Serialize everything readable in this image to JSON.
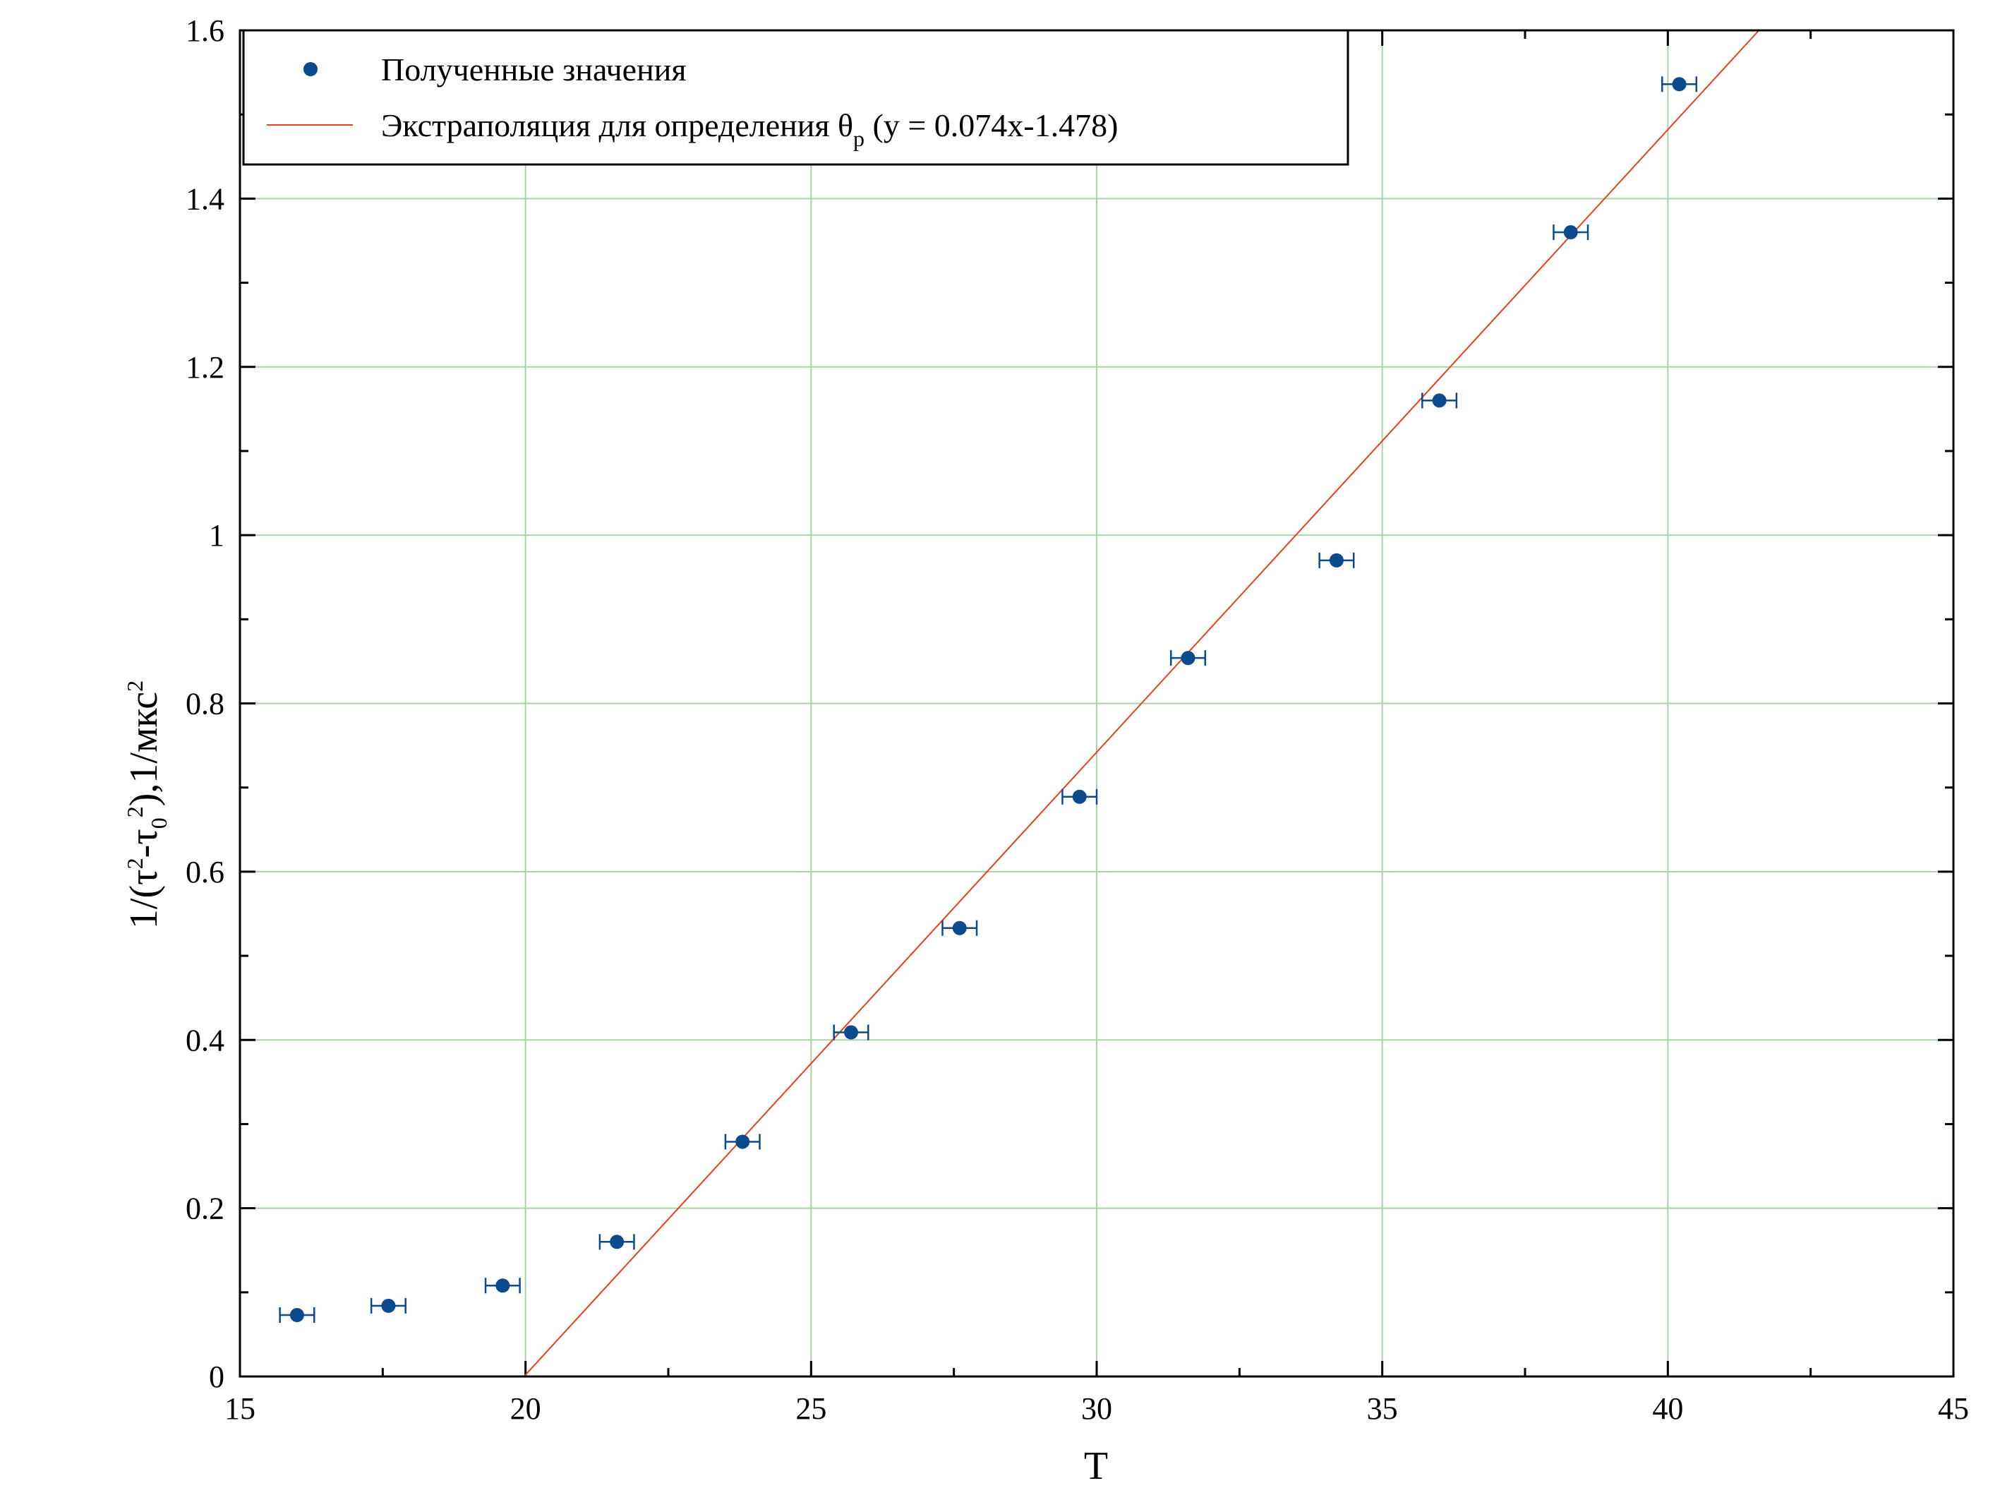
{
  "chart_data": {
    "type": "scatter",
    "xlabel": "T",
    "ylabel": {
      "base": "1/(τ",
      "sup1": "2",
      "mid1": "-τ",
      "sub": "0",
      "sup2": "2",
      "mid2": "),1/мкс",
      "sup3": "2"
    },
    "xlim": [
      15,
      45
    ],
    "ylim": [
      0,
      1.6
    ],
    "xticks": [
      15,
      20,
      25,
      30,
      35,
      40,
      45
    ],
    "xtick_labels": [
      "15",
      "20",
      "25",
      "30",
      "35",
      "40",
      "45"
    ],
    "yticks": [
      0,
      0.2,
      0.4,
      0.6,
      0.8,
      1.0,
      1.2,
      1.4,
      1.6
    ],
    "ytick_labels": [
      "0",
      "0.2",
      "0.4",
      "0.6",
      "0.8",
      "1",
      "1.2",
      "1.4",
      "1.6"
    ],
    "grid": true,
    "legend_position": "top-left",
    "series": [
      {
        "name": "Полученные значения",
        "kind": "scatter",
        "color": "#0b4a8c",
        "x": [
          16.0,
          17.6,
          19.6,
          21.6,
          23.8,
          25.7,
          27.6,
          29.7,
          31.6,
          34.2,
          36.0,
          38.3,
          40.2
        ],
        "y": [
          0.073,
          0.084,
          0.108,
          0.16,
          0.279,
          0.409,
          0.533,
          0.689,
          0.854,
          0.97,
          1.16,
          1.36,
          1.536
        ],
        "xerr": 0.3
      },
      {
        "name_prefix": "Экстраполяция для определения θ",
        "name_sub": "p",
        "name_suffix": " (y = 0.074x-1.478)",
        "kind": "line",
        "color": "#e8401c",
        "slope": 0.074,
        "intercept": -1.478
      }
    ]
  }
}
